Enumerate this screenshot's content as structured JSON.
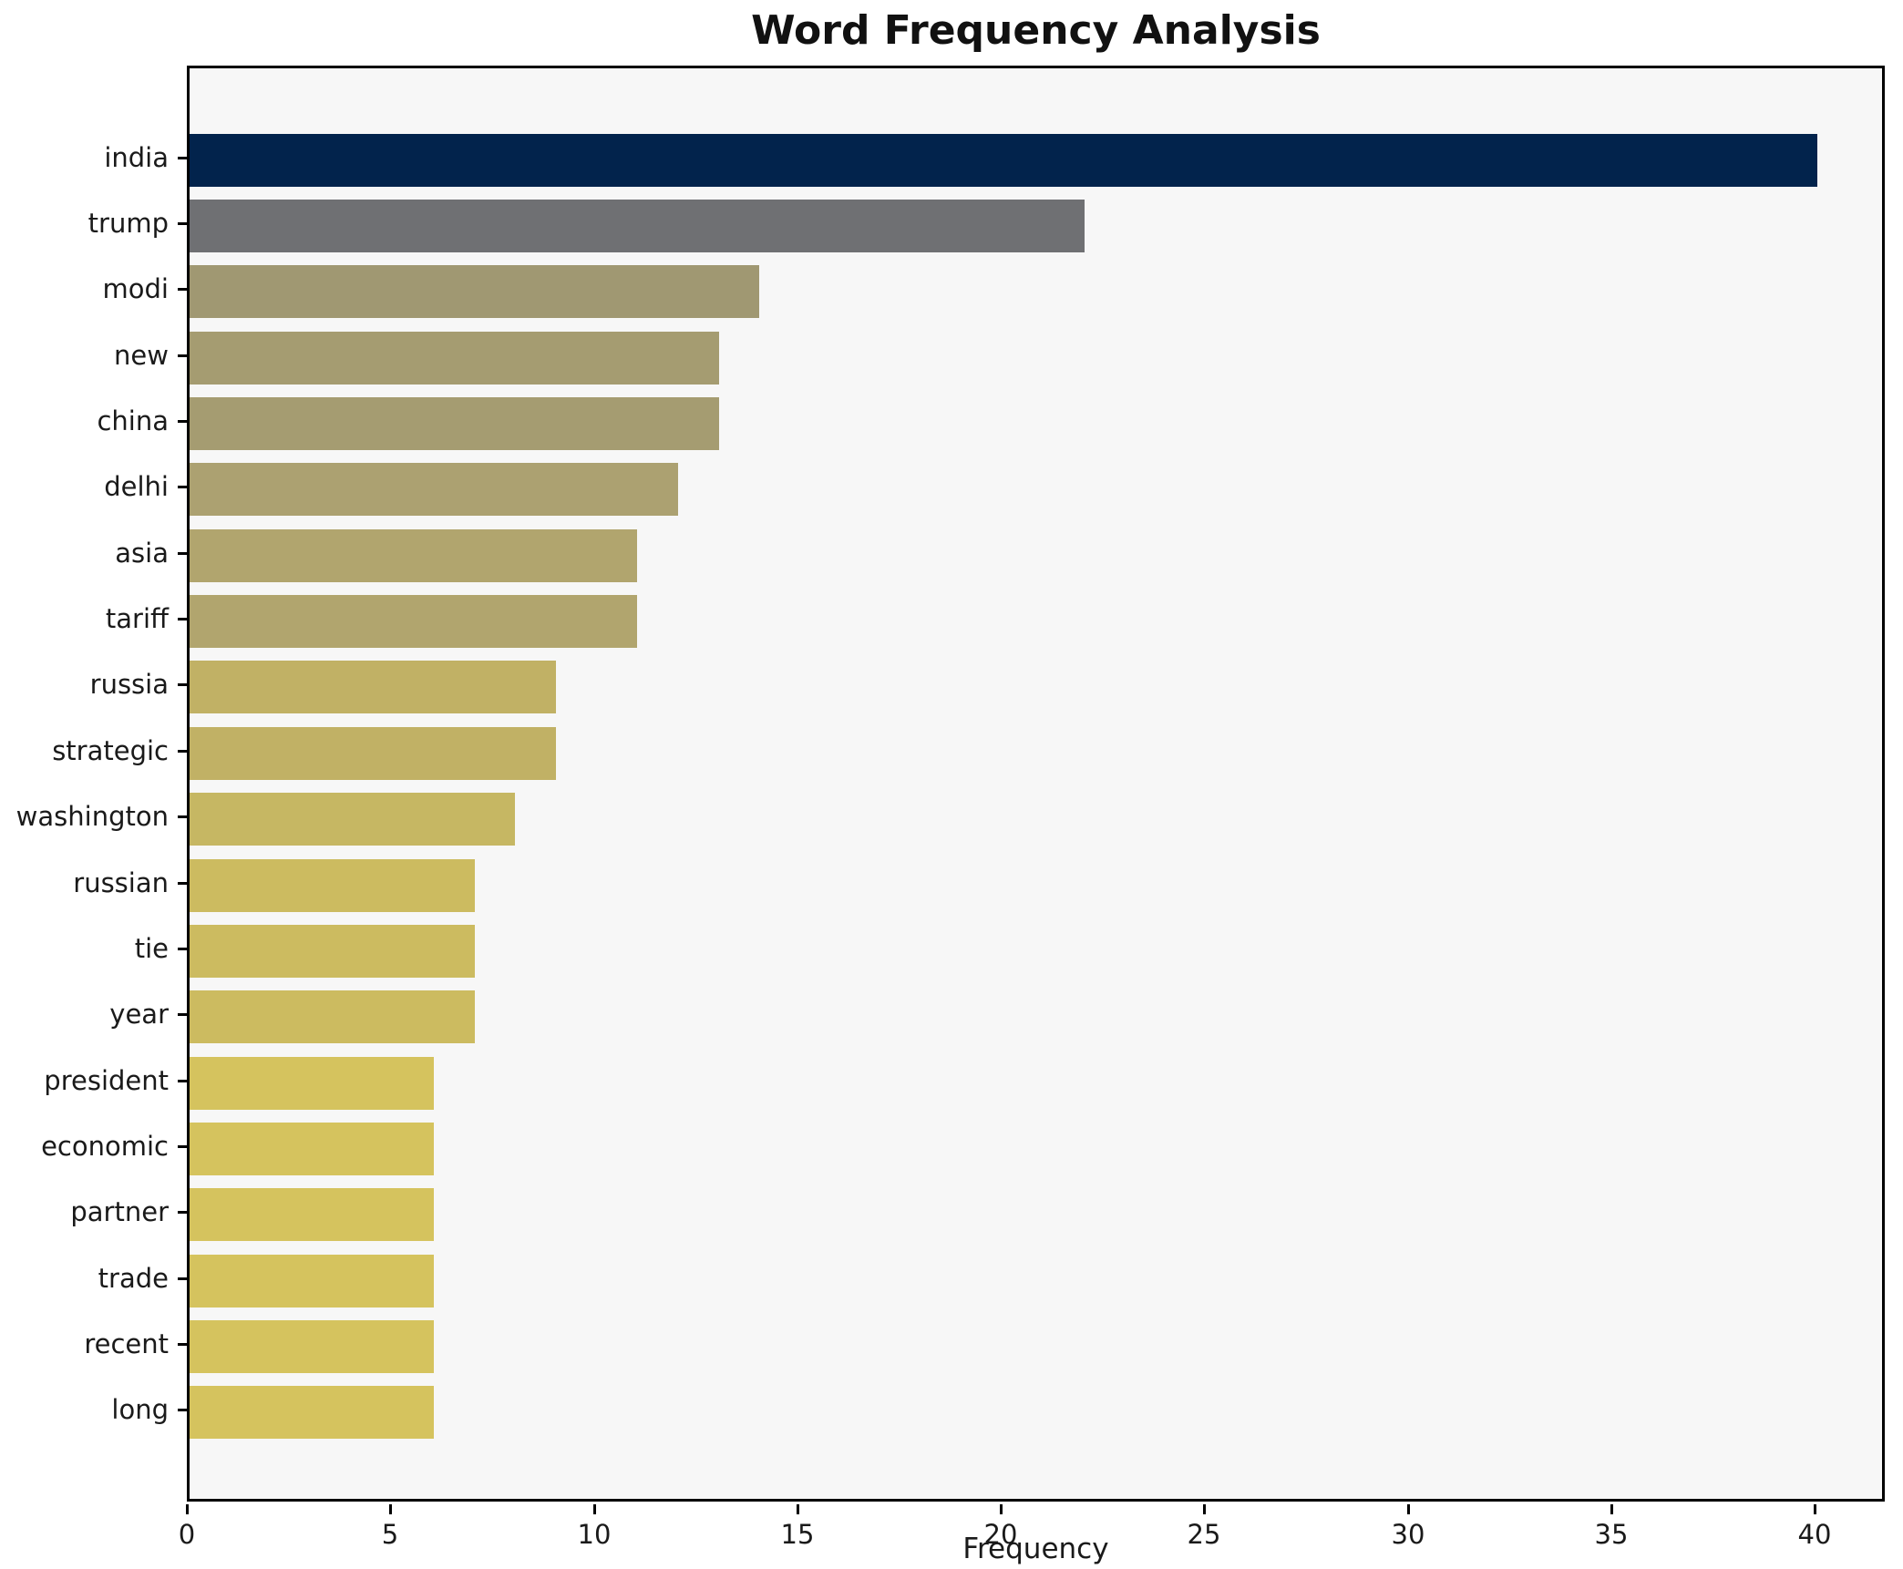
{
  "chart_data": {
    "type": "bar",
    "orientation": "horizontal",
    "title": "Word Frequency Analysis",
    "xlabel": "Frequency",
    "ylabel": "",
    "categories": [
      "india",
      "trump",
      "modi",
      "new",
      "china",
      "delhi",
      "asia",
      "tariff",
      "russia",
      "strategic",
      "washington",
      "russian",
      "tie",
      "year",
      "president",
      "economic",
      "partner",
      "trade",
      "recent",
      "long"
    ],
    "values": [
      40,
      22,
      14,
      13,
      13,
      12,
      11,
      11,
      9,
      9,
      8,
      7,
      7,
      7,
      6,
      6,
      6,
      6,
      6,
      6
    ],
    "bar_colors": [
      "#02234c",
      "#6f7073",
      "#a09872",
      "#a59c71",
      "#a59c71",
      "#aca171",
      "#b1a56e",
      "#b1a56e",
      "#c1b165",
      "#c1b165",
      "#c6b763",
      "#ccbb60",
      "#ccbb60",
      "#ccbb60",
      "#d5c35e",
      "#d5c35e",
      "#d5c35e",
      "#d5c35e",
      "#d5c35e",
      "#d5c35e"
    ],
    "xticks": [
      0,
      5,
      10,
      15,
      20,
      25,
      30,
      35,
      40
    ],
    "xlim": [
      0,
      41.72
    ],
    "grid": false,
    "legend": null,
    "plot_background": "#f7f7f7",
    "frame_color": "#000000"
  }
}
